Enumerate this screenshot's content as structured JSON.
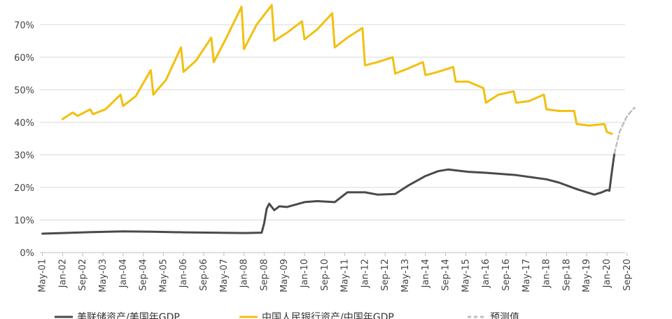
{
  "chart_data": {
    "type": "line",
    "title": "",
    "xlabel": "",
    "ylabel": "",
    "ylim": [
      0,
      75
    ],
    "grid": true,
    "legend_position": "bottom",
    "y_ticks": [
      "0%",
      "10%",
      "20%",
      "30%",
      "40%",
      "50%",
      "60%",
      "70%"
    ],
    "y_tick_values": [
      0,
      10,
      20,
      30,
      40,
      50,
      60,
      70
    ],
    "x_ticks": [
      "May-01",
      "Jan-02",
      "Sep-02",
      "May-03",
      "Jan-04",
      "Sep-04",
      "May-05",
      "Jan-06",
      "Sep-06",
      "May-07",
      "Jan-08",
      "Sep-08",
      "May-09",
      "Jan-10",
      "Sep-10",
      "May-11",
      "Jan-12",
      "Sep-12",
      "May-13",
      "Jan-14",
      "Sep-14",
      "May-15",
      "Jan-16",
      "Sep-16",
      "May-17",
      "Jan-18",
      "Sep-18",
      "May-19",
      "Jan-20",
      "Sep-20"
    ],
    "x_tick_dates": [
      "2001-05",
      "2002-01",
      "2002-09",
      "2003-05",
      "2004-01",
      "2004-09",
      "2005-05",
      "2006-01",
      "2006-09",
      "2007-05",
      "2008-01",
      "2008-09",
      "2009-05",
      "2010-01",
      "2010-09",
      "2011-05",
      "2012-01",
      "2012-09",
      "2013-05",
      "2014-01",
      "2014-09",
      "2015-05",
      "2016-01",
      "2016-09",
      "2017-05",
      "2018-01",
      "2018-09",
      "2019-05",
      "2020-01",
      "2020-09"
    ],
    "series": [
      {
        "name": "美联储资产/美国年GDP",
        "color": "#4a4a4a",
        "style": "solid",
        "points": [
          [
            "2001-05",
            5.8
          ],
          [
            "2002-01",
            6.0
          ],
          [
            "2003-01",
            6.3
          ],
          [
            "2004-01",
            6.5
          ],
          [
            "2005-01",
            6.4
          ],
          [
            "2006-01",
            6.2
          ],
          [
            "2007-01",
            6.1
          ],
          [
            "2008-01",
            6.0
          ],
          [
            "2008-08",
            6.1
          ],
          [
            "2008-09",
            9.0
          ],
          [
            "2008-10",
            13.5
          ],
          [
            "2008-11",
            15.0
          ],
          [
            "2009-01",
            13.0
          ],
          [
            "2009-03",
            14.2
          ],
          [
            "2009-06",
            14.0
          ],
          [
            "2010-01",
            15.5
          ],
          [
            "2010-06",
            15.8
          ],
          [
            "2011-01",
            15.5
          ],
          [
            "2011-06",
            18.5
          ],
          [
            "2012-01",
            18.5
          ],
          [
            "2012-06",
            17.8
          ],
          [
            "2013-01",
            18.0
          ],
          [
            "2013-06",
            20.5
          ],
          [
            "2014-01",
            23.5
          ],
          [
            "2014-06",
            25.0
          ],
          [
            "2014-10",
            25.5
          ],
          [
            "2015-06",
            24.8
          ],
          [
            "2016-01",
            24.5
          ],
          [
            "2017-01",
            23.8
          ],
          [
            "2018-01",
            22.5
          ],
          [
            "2018-06",
            21.5
          ],
          [
            "2019-01",
            19.5
          ],
          [
            "2019-08",
            17.8
          ],
          [
            "2019-11",
            18.5
          ],
          [
            "2020-01",
            19.2
          ],
          [
            "2020-02",
            19.0
          ],
          [
            "2020-03",
            25.0
          ],
          [
            "2020-04",
            30.5
          ]
        ]
      },
      {
        "name": "中国人民银行资产/中国年GDP",
        "color": "#f2c00e",
        "style": "solid",
        "points": [
          [
            "2002-01",
            41.0
          ],
          [
            "2002-05",
            43.0
          ],
          [
            "2002-07",
            42.0
          ],
          [
            "2002-12",
            44.0
          ],
          [
            "2003-01",
            42.5
          ],
          [
            "2003-06",
            44.0
          ],
          [
            "2003-12",
            48.5
          ],
          [
            "2004-01",
            45.0
          ],
          [
            "2004-06",
            48.0
          ],
          [
            "2004-12",
            56.0
          ],
          [
            "2005-01",
            48.5
          ],
          [
            "2005-06",
            53.0
          ],
          [
            "2005-12",
            63.0
          ],
          [
            "2006-01",
            55.5
          ],
          [
            "2006-06",
            59.0
          ],
          [
            "2006-12",
            66.0
          ],
          [
            "2007-01",
            58.5
          ],
          [
            "2007-06",
            66.0
          ],
          [
            "2007-12",
            75.5
          ],
          [
            "2008-01",
            62.5
          ],
          [
            "2008-06",
            70.0
          ],
          [
            "2008-12",
            76.0
          ],
          [
            "2009-01",
            65.0
          ],
          [
            "2009-06",
            67.5
          ],
          [
            "2009-12",
            71.0
          ],
          [
            "2010-01",
            65.5
          ],
          [
            "2010-06",
            68.5
          ],
          [
            "2010-12",
            73.5
          ],
          [
            "2011-01",
            63.0
          ],
          [
            "2011-06",
            66.0
          ],
          [
            "2011-12",
            69.0
          ],
          [
            "2012-01",
            57.5
          ],
          [
            "2012-06",
            58.5
          ],
          [
            "2012-12",
            60.0
          ],
          [
            "2013-01",
            55.0
          ],
          [
            "2013-06",
            56.5
          ],
          [
            "2013-12",
            58.5
          ],
          [
            "2014-01",
            54.5
          ],
          [
            "2014-06",
            55.5
          ],
          [
            "2014-12",
            57.0
          ],
          [
            "2015-01",
            52.5
          ],
          [
            "2015-06",
            52.5
          ],
          [
            "2015-12",
            50.5
          ],
          [
            "2016-01",
            46.0
          ],
          [
            "2016-06",
            48.5
          ],
          [
            "2016-12",
            49.5
          ],
          [
            "2017-01",
            46.0
          ],
          [
            "2017-06",
            46.5
          ],
          [
            "2017-12",
            48.5
          ],
          [
            "2018-01",
            44.0
          ],
          [
            "2018-06",
            43.5
          ],
          [
            "2018-12",
            43.5
          ],
          [
            "2019-01",
            39.5
          ],
          [
            "2019-06",
            39.0
          ],
          [
            "2019-12",
            39.5
          ],
          [
            "2020-01",
            37.0
          ],
          [
            "2020-03",
            36.5
          ]
        ]
      },
      {
        "name": "预测值",
        "color": "#bdbdbd",
        "style": "dashed",
        "points": [
          [
            "2020-04",
            30.5
          ],
          [
            "2020-06",
            37.0
          ],
          [
            "2020-09",
            42.0
          ],
          [
            "2020-12",
            44.5
          ]
        ]
      }
    ]
  }
}
